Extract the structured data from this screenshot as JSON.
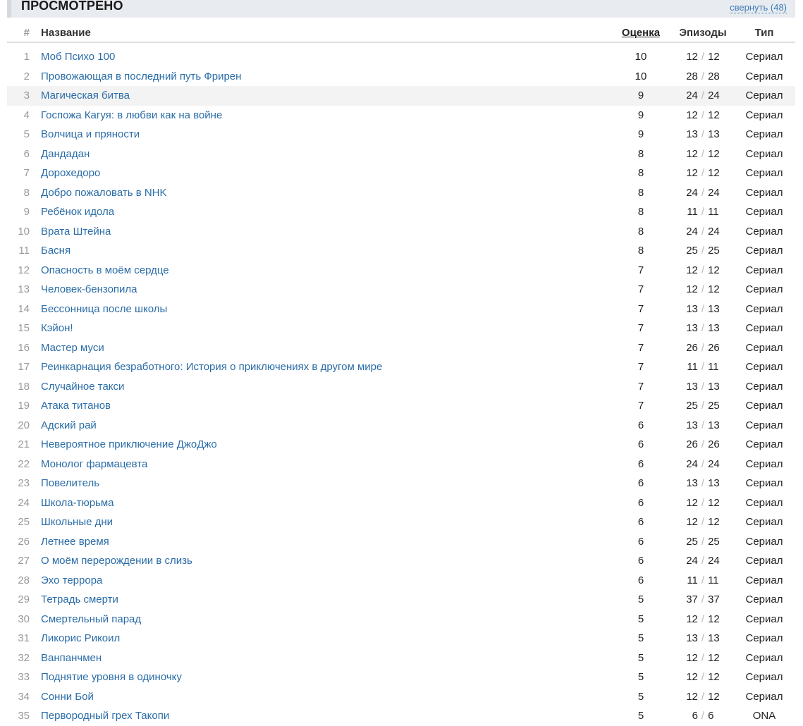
{
  "section": {
    "title": "ПРОСМОТРЕНО",
    "toggle_label": "свернуть (48)"
  },
  "columns": {
    "num": "#",
    "name": "Название",
    "score": "Оценка",
    "episodes": "Эпизоды",
    "type": "Тип"
  },
  "highlighted_row": 3,
  "rows": [
    {
      "n": "1",
      "name": "Моб Психо 100",
      "score": "10",
      "watched": "12",
      "total": "12",
      "type": "Сериал"
    },
    {
      "n": "2",
      "name": "Провожающая в последний путь Фрирен",
      "score": "10",
      "watched": "28",
      "total": "28",
      "type": "Сериал"
    },
    {
      "n": "3",
      "name": "Магическая битва",
      "score": "9",
      "watched": "24",
      "total": "24",
      "type": "Сериал"
    },
    {
      "n": "4",
      "name": "Госпожа Кагуя: в любви как на войне",
      "score": "9",
      "watched": "12",
      "total": "12",
      "type": "Сериал"
    },
    {
      "n": "5",
      "name": "Волчица и пряности",
      "score": "9",
      "watched": "13",
      "total": "13",
      "type": "Сериал"
    },
    {
      "n": "6",
      "name": "Дандадан",
      "score": "8",
      "watched": "12",
      "total": "12",
      "type": "Сериал"
    },
    {
      "n": "7",
      "name": "Дорохедоро",
      "score": "8",
      "watched": "12",
      "total": "12",
      "type": "Сериал"
    },
    {
      "n": "8",
      "name": "Добро пожаловать в NHK",
      "score": "8",
      "watched": "24",
      "total": "24",
      "type": "Сериал"
    },
    {
      "n": "9",
      "name": "Ребёнок идола",
      "score": "8",
      "watched": "11",
      "total": "11",
      "type": "Сериал"
    },
    {
      "n": "10",
      "name": "Врата Штейна",
      "score": "8",
      "watched": "24",
      "total": "24",
      "type": "Сериал"
    },
    {
      "n": "11",
      "name": "Басня",
      "score": "8",
      "watched": "25",
      "total": "25",
      "type": "Сериал"
    },
    {
      "n": "12",
      "name": "Опасность в моём сердце",
      "score": "7",
      "watched": "12",
      "total": "12",
      "type": "Сериал"
    },
    {
      "n": "13",
      "name": "Человек-бензопила",
      "score": "7",
      "watched": "12",
      "total": "12",
      "type": "Сериал"
    },
    {
      "n": "14",
      "name": "Бессонница после школы",
      "score": "7",
      "watched": "13",
      "total": "13",
      "type": "Сериал"
    },
    {
      "n": "15",
      "name": "Кэйон!",
      "score": "7",
      "watched": "13",
      "total": "13",
      "type": "Сериал"
    },
    {
      "n": "16",
      "name": "Мастер муси",
      "score": "7",
      "watched": "26",
      "total": "26",
      "type": "Сериал"
    },
    {
      "n": "17",
      "name": "Реинкарнация безработного: История о приключениях в другом мире",
      "score": "7",
      "watched": "11",
      "total": "11",
      "type": "Сериал"
    },
    {
      "n": "18",
      "name": "Случайное такси",
      "score": "7",
      "watched": "13",
      "total": "13",
      "type": "Сериал"
    },
    {
      "n": "19",
      "name": "Атака титанов",
      "score": "7",
      "watched": "25",
      "total": "25",
      "type": "Сериал"
    },
    {
      "n": "20",
      "name": "Адский рай",
      "score": "6",
      "watched": "13",
      "total": "13",
      "type": "Сериал"
    },
    {
      "n": "21",
      "name": "Невероятное приключение ДжоДжо",
      "score": "6",
      "watched": "26",
      "total": "26",
      "type": "Сериал"
    },
    {
      "n": "22",
      "name": "Монолог фармацевта",
      "score": "6",
      "watched": "24",
      "total": "24",
      "type": "Сериал"
    },
    {
      "n": "23",
      "name": "Повелитель",
      "score": "6",
      "watched": "13",
      "total": "13",
      "type": "Сериал"
    },
    {
      "n": "24",
      "name": "Школа-тюрьма",
      "score": "6",
      "watched": "12",
      "total": "12",
      "type": "Сериал"
    },
    {
      "n": "25",
      "name": "Школьные дни",
      "score": "6",
      "watched": "12",
      "total": "12",
      "type": "Сериал"
    },
    {
      "n": "26",
      "name": "Летнее время",
      "score": "6",
      "watched": "25",
      "total": "25",
      "type": "Сериал"
    },
    {
      "n": "27",
      "name": "О моём перерождении в слизь",
      "score": "6",
      "watched": "24",
      "total": "24",
      "type": "Сериал"
    },
    {
      "n": "28",
      "name": "Эхо террора",
      "score": "6",
      "watched": "11",
      "total": "11",
      "type": "Сериал"
    },
    {
      "n": "29",
      "name": "Тетрадь смерти",
      "score": "5",
      "watched": "37",
      "total": "37",
      "type": "Сериал"
    },
    {
      "n": "30",
      "name": "Смертельный парад",
      "score": "5",
      "watched": "12",
      "total": "12",
      "type": "Сериал"
    },
    {
      "n": "31",
      "name": "Ликорис Рикоил",
      "score": "5",
      "watched": "13",
      "total": "13",
      "type": "Сериал"
    },
    {
      "n": "32",
      "name": "Ванпанчмен",
      "score": "5",
      "watched": "12",
      "total": "12",
      "type": "Сериал"
    },
    {
      "n": "33",
      "name": "Поднятие уровня в одиночку",
      "score": "5",
      "watched": "12",
      "total": "12",
      "type": "Сериал"
    },
    {
      "n": "34",
      "name": "Сонни Бой",
      "score": "5",
      "watched": "12",
      "total": "12",
      "type": "Сериал"
    },
    {
      "n": "35",
      "name": "Первородный грех Такопи",
      "score": "5",
      "watched": "6",
      "total": "6",
      "type": "ONA"
    }
  ]
}
